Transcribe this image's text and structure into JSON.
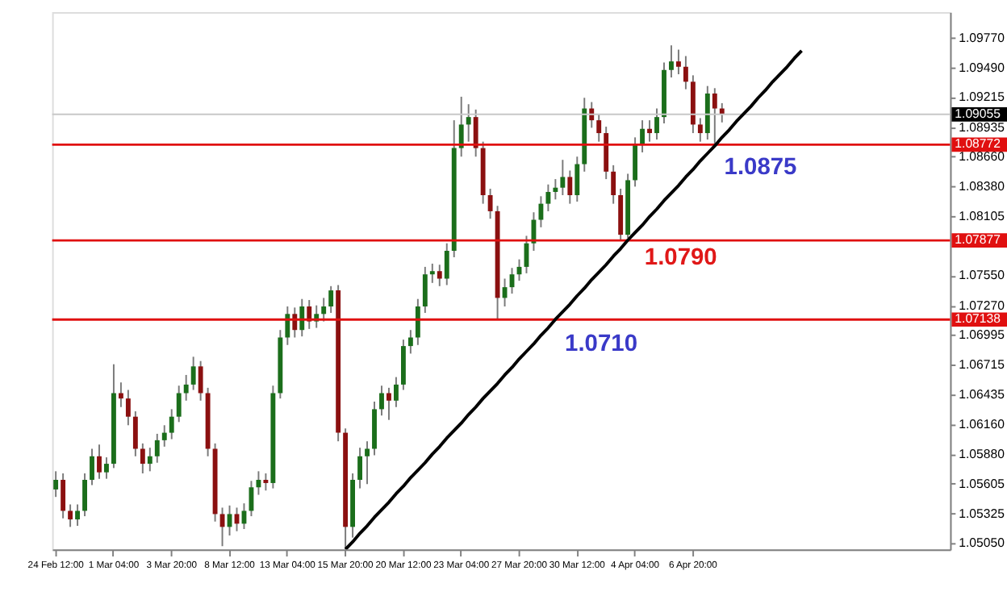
{
  "chart_data": {
    "type": "candlestick",
    "categories": [
      "24 Feb 12:00",
      null,
      null,
      null,
      null,
      null,
      null,
      null,
      "1 Mar 04:00",
      null,
      null,
      null,
      null,
      null,
      null,
      null,
      "3 Mar 20:00",
      null,
      null,
      null,
      null,
      null,
      null,
      null,
      "8 Mar 12:00",
      null,
      null,
      null,
      null,
      null,
      null,
      null,
      "13 Mar 04:00",
      null,
      null,
      null,
      null,
      null,
      null,
      null,
      "15 Mar 20:00",
      null,
      null,
      null,
      null,
      null,
      null,
      null,
      "20 Mar 12:00",
      null,
      null,
      null,
      null,
      null,
      null,
      null,
      "23 Mar 04:00",
      null,
      null,
      null,
      null,
      null,
      null,
      null,
      "27 Mar 20:00",
      null,
      null,
      null,
      null,
      null,
      null,
      null,
      "30 Mar 12:00",
      null,
      null,
      null,
      null,
      null,
      null,
      null,
      "4 Apr 04:00",
      null,
      null,
      null,
      null,
      null,
      null,
      null,
      "6 Apr 20:00",
      null,
      null,
      null,
      null,
      null,
      null,
      null,
      null,
      null,
      null,
      null,
      null,
      null,
      null,
      null,
      null,
      null,
      null,
      null,
      null,
      null,
      null,
      null,
      null,
      null,
      null,
      null,
      null,
      null,
      null,
      null,
      null,
      null,
      null,
      null
    ],
    "ohlc": [
      [
        1.0555,
        1.0572,
        1.0548,
        1.0564
      ],
      [
        1.0564,
        1.057,
        1.0528,
        1.0535
      ],
      [
        1.0535,
        1.0541,
        1.052,
        1.0527
      ],
      [
        1.0527,
        1.0541,
        1.0521,
        1.0535
      ],
      [
        1.0535,
        1.057,
        1.053,
        1.0564
      ],
      [
        1.0564,
        1.0593,
        1.0559,
        1.0586
      ],
      [
        1.0586,
        1.0597,
        1.0565,
        1.0571
      ],
      [
        1.0571,
        1.0585,
        1.0565,
        1.0579
      ],
      [
        1.0579,
        1.0672,
        1.0575,
        1.0645
      ],
      [
        1.0645,
        1.0655,
        1.0632,
        1.064
      ],
      [
        1.064,
        1.0648,
        1.0615,
        1.0623
      ],
      [
        1.0623,
        1.0628,
        1.0586,
        1.0593
      ],
      [
        1.0593,
        1.0598,
        1.057,
        1.0579
      ],
      [
        1.0579,
        1.0594,
        1.0572,
        1.0586
      ],
      [
        1.0586,
        1.0607,
        1.058,
        1.0601
      ],
      [
        1.0601,
        1.0615,
        1.0595,
        1.0608
      ],
      [
        1.0608,
        1.063,
        1.0602,
        1.0623
      ],
      [
        1.0623,
        1.0652,
        1.0618,
        1.0645
      ],
      [
        1.0645,
        1.0662,
        1.0638,
        1.0653
      ],
      [
        1.0653,
        1.0679,
        1.0648,
        1.067
      ],
      [
        1.067,
        1.0675,
        1.0638,
        1.0645
      ],
      [
        1.0645,
        1.065,
        1.0586,
        1.0593
      ],
      [
        1.0593,
        1.0598,
        1.0525,
        1.0532
      ],
      [
        1.0532,
        1.0538,
        1.0502,
        1.052
      ],
      [
        1.052,
        1.054,
        1.0512,
        1.0532
      ],
      [
        1.0532,
        1.0538,
        1.0516,
        1.0523
      ],
      [
        1.0523,
        1.0542,
        1.0518,
        1.0535
      ],
      [
        1.0535,
        1.0563,
        1.053,
        1.0557
      ],
      [
        1.0557,
        1.0572,
        1.055,
        1.0564
      ],
      [
        1.0564,
        1.057,
        1.0554,
        1.0561
      ],
      [
        1.0561,
        1.0652,
        1.0556,
        1.0645
      ],
      [
        1.0645,
        1.0704,
        1.064,
        1.0697
      ],
      [
        1.0697,
        1.0726,
        1.069,
        1.0719
      ],
      [
        1.0719,
        1.0725,
        1.0697,
        1.0704
      ],
      [
        1.0704,
        1.0733,
        1.0698,
        1.0726
      ],
      [
        1.0726,
        1.0732,
        1.0705,
        1.0712
      ],
      [
        1.0712,
        1.0727,
        1.0706,
        1.0719
      ],
      [
        1.0719,
        1.0734,
        1.0712,
        1.0726
      ],
      [
        1.0726,
        1.0745,
        1.072,
        1.0741
      ],
      [
        1.0741,
        1.0746,
        1.06,
        1.0608
      ],
      [
        1.0608,
        1.0612,
        1.05,
        1.052
      ],
      [
        1.052,
        1.057,
        1.051,
        1.0564
      ],
      [
        1.0564,
        1.0594,
        1.0556,
        1.0586
      ],
      [
        1.0586,
        1.06,
        1.056,
        1.0593
      ],
      [
        1.0593,
        1.0637,
        1.0587,
        1.063
      ],
      [
        1.063,
        1.0652,
        1.0624,
        1.0645
      ],
      [
        1.0645,
        1.065,
        1.062,
        1.0638
      ],
      [
        1.0638,
        1.066,
        1.0632,
        1.0653
      ],
      [
        1.0653,
        1.0695,
        1.0648,
        1.0689
      ],
      [
        1.0689,
        1.0704,
        1.0682,
        1.0697
      ],
      [
        1.0697,
        1.0733,
        1.069,
        1.0726
      ],
      [
        1.0726,
        1.0763,
        1.072,
        1.0756
      ],
      [
        1.0756,
        1.0766,
        1.0748,
        1.0759
      ],
      [
        1.0759,
        1.0765,
        1.0745,
        1.0752
      ],
      [
        1.0752,
        1.0785,
        1.0746,
        1.0778
      ],
      [
        1.0778,
        1.09,
        1.0772,
        1.0874
      ],
      [
        1.0874,
        1.0922,
        1.0866,
        1.0896
      ],
      [
        1.0896,
        1.0915,
        1.088,
        1.0903
      ],
      [
        1.0903,
        1.091,
        1.0866,
        1.0874
      ],
      [
        1.0874,
        1.088,
        1.0822,
        1.083
      ],
      [
        1.083,
        1.0836,
        1.0808,
        1.0815
      ],
      [
        1.0815,
        1.082,
        1.0714,
        1.0734
      ],
      [
        1.0734,
        1.0752,
        1.0726,
        1.0744
      ],
      [
        1.0744,
        1.0762,
        1.0738,
        1.0756
      ],
      [
        1.0756,
        1.077,
        1.075,
        1.0763
      ],
      [
        1.0763,
        1.0792,
        1.0757,
        1.0785
      ],
      [
        1.0785,
        1.0814,
        1.0778,
        1.0807
      ],
      [
        1.0807,
        1.0829,
        1.08,
        1.0822
      ],
      [
        1.0822,
        1.084,
        1.0815,
        1.0833
      ],
      [
        1.0833,
        1.0845,
        1.0826,
        1.0837
      ],
      [
        1.0837,
        1.0863,
        1.083,
        1.0847
      ],
      [
        1.0847,
        1.0853,
        1.0822,
        1.083
      ],
      [
        1.083,
        1.0866,
        1.0824,
        1.0859
      ],
      [
        1.0859,
        1.0921,
        1.0852,
        1.0911
      ],
      [
        1.0911,
        1.0917,
        1.0893,
        1.09
      ],
      [
        1.09,
        1.0906,
        1.088,
        1.0888
      ],
      [
        1.0888,
        1.0894,
        1.0845,
        1.0852
      ],
      [
        1.0852,
        1.0858,
        1.0822,
        1.083
      ],
      [
        1.083,
        1.0836,
        1.0788,
        1.0793
      ],
      [
        1.0793,
        1.085,
        1.079,
        1.0844
      ],
      [
        1.0844,
        1.0884,
        1.0838,
        1.0877
      ],
      [
        1.0877,
        1.09,
        1.087,
        1.0892
      ],
      [
        1.0892,
        1.09,
        1.088,
        1.0888
      ],
      [
        1.0888,
        1.0911,
        1.0882,
        1.0903
      ],
      [
        1.0903,
        1.0954,
        1.0897,
        1.0947
      ],
      [
        1.0947,
        1.097,
        1.094,
        1.0955
      ],
      [
        1.0955,
        1.0966,
        1.0943,
        1.095
      ],
      [
        1.095,
        1.096,
        1.0929,
        1.0936
      ],
      [
        1.0936,
        1.0942,
        1.0888,
        1.0896
      ],
      [
        1.0896,
        1.0902,
        1.088,
        1.0888
      ],
      [
        1.0888,
        1.0932,
        1.0882,
        1.0925
      ],
      [
        1.0925,
        1.093,
        1.0877,
        1.0911
      ],
      [
        1.0911,
        1.0916,
        1.0898,
        1.09055
      ],
      null,
      null,
      null,
      null,
      null,
      null,
      null,
      null,
      null,
      null,
      null,
      null,
      null,
      null,
      null,
      null,
      null,
      null,
      null,
      null,
      null,
      null,
      null,
      null,
      null,
      null,
      null,
      null,
      null,
      null,
      null
    ],
    "series": [
      {
        "type": "line",
        "color": "#000000",
        "values": [
          null,
          null,
          null,
          null,
          null,
          null,
          null,
          null,
          null,
          null,
          null,
          null,
          null,
          null,
          null,
          null,
          null,
          null,
          null,
          null,
          null,
          null,
          null,
          null,
          null,
          null,
          null,
          null,
          null,
          null,
          null,
          null,
          null,
          null,
          null,
          null,
          null,
          null,
          null,
          null,
          1.0499,
          1.0506,
          1.0514,
          1.0521,
          1.0529,
          1.0536,
          1.0543,
          1.0551,
          1.0558,
          1.0566,
          1.0573,
          1.058,
          1.0588,
          1.0595,
          1.0603,
          1.061,
          1.0617,
          1.0625,
          1.0632,
          1.064,
          1.0647,
          1.0654,
          1.0662,
          1.0669,
          1.0677,
          1.0684,
          1.0691,
          1.0699,
          1.0706,
          1.0714,
          1.0721,
          1.0728,
          1.0736,
          1.0743,
          1.0751,
          1.0758,
          1.0765,
          1.0773,
          1.078,
          1.0788,
          1.0795,
          1.0802,
          1.081,
          1.0817,
          1.0825,
          1.0832,
          1.0839,
          1.0847,
          1.0854,
          1.0862,
          1.0869,
          1.0876,
          1.0884,
          1.0891,
          1.0899,
          1.0906,
          1.0913,
          1.0921,
          1.0928,
          1.0936,
          1.0943,
          1.095,
          1.0958,
          1.0965,
          null,
          null,
          null,
          null,
          null,
          null,
          null,
          null,
          null,
          null,
          null,
          null,
          null,
          null,
          null,
          null,
          null,
          null,
          null,
          null
        ]
      }
    ],
    "ylim": [
      1.0499,
      1.1001
    ],
    "yticks": [
      {
        "value": 1.0977,
        "label": "1.09770"
      },
      {
        "value": 1.0949,
        "label": "1.09490"
      },
      1.09215,
      1.08935,
      {
        "value": 1.0866,
        "label": "1.08660"
      },
      {
        "value": 1.0838,
        "label": "1.08380"
      },
      1.08105,
      {
        "value": 1.0755,
        "label": "1.07550"
      },
      {
        "value": 1.0727,
        "label": "1.07270"
      },
      1.06995,
      1.06715,
      1.06435,
      {
        "value": 1.0616,
        "label": "1.06160"
      },
      {
        "value": 1.0588,
        "label": "1.05880"
      },
      1.05605,
      1.05325,
      {
        "value": 1.0505,
        "label": "1.05050"
      }
    ],
    "ref_lines": [
      {
        "axis": "y",
        "value": 1.09055,
        "label": "1.09055",
        "color": "#c8c8c8"
      },
      {
        "axis": "y",
        "value": 1.08772,
        "label": "1.08772",
        "color": "#e01010"
      },
      {
        "axis": "y",
        "value": 1.07877,
        "label": "1.07877",
        "color": "#e01010"
      },
      {
        "axis": "y",
        "value": 1.07138,
        "label": "1.07138",
        "color": "#e01010"
      }
    ],
    "annotations": [
      {
        "text": "1.0875",
        "y": 1.0875
      },
      {
        "text": "1.0790",
        "y": 1.079
      },
      {
        "text": "1.0710",
        "y": 1.071
      }
    ]
  }
}
